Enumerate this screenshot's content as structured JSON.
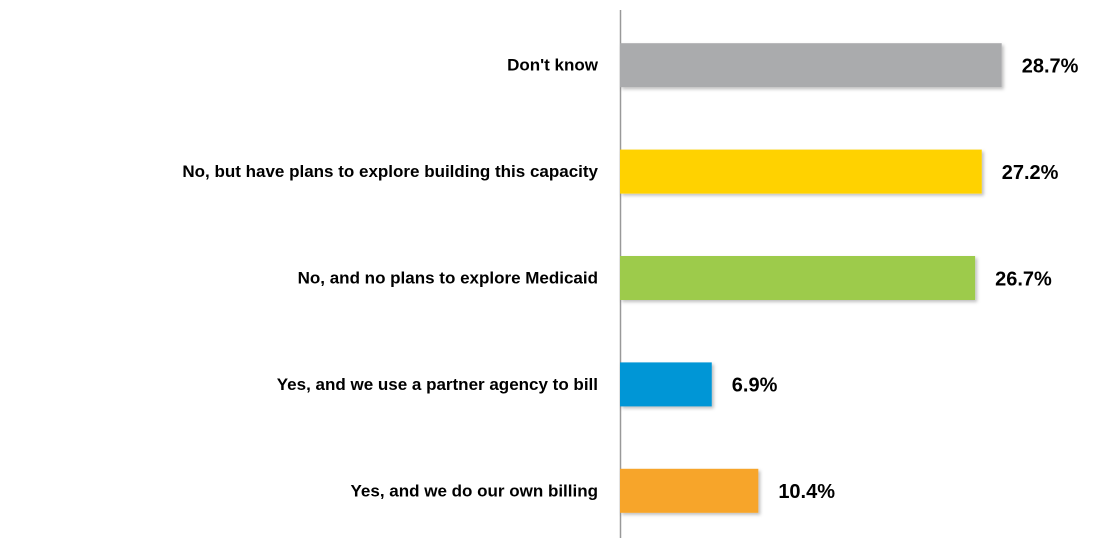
{
  "chart_data": {
    "type": "bar",
    "orientation": "horizontal",
    "categories": [
      "Don't know",
      "No, but have plans to explore building this capacity",
      "No, and no plans to explore Medicaid",
      "Yes, and we use a partner agency to bill",
      "Yes, and we do our own billing"
    ],
    "values": [
      28.7,
      27.2,
      26.7,
      6.9,
      10.4
    ],
    "value_labels": [
      "28.7%",
      "27.2%",
      "26.7%",
      "6.9%",
      "10.4%"
    ],
    "colors": [
      "#aaabad",
      "#ffd200",
      "#9dcb4c",
      "#0096d6",
      "#f7a529"
    ],
    "xlim": [
      0,
      30
    ]
  }
}
